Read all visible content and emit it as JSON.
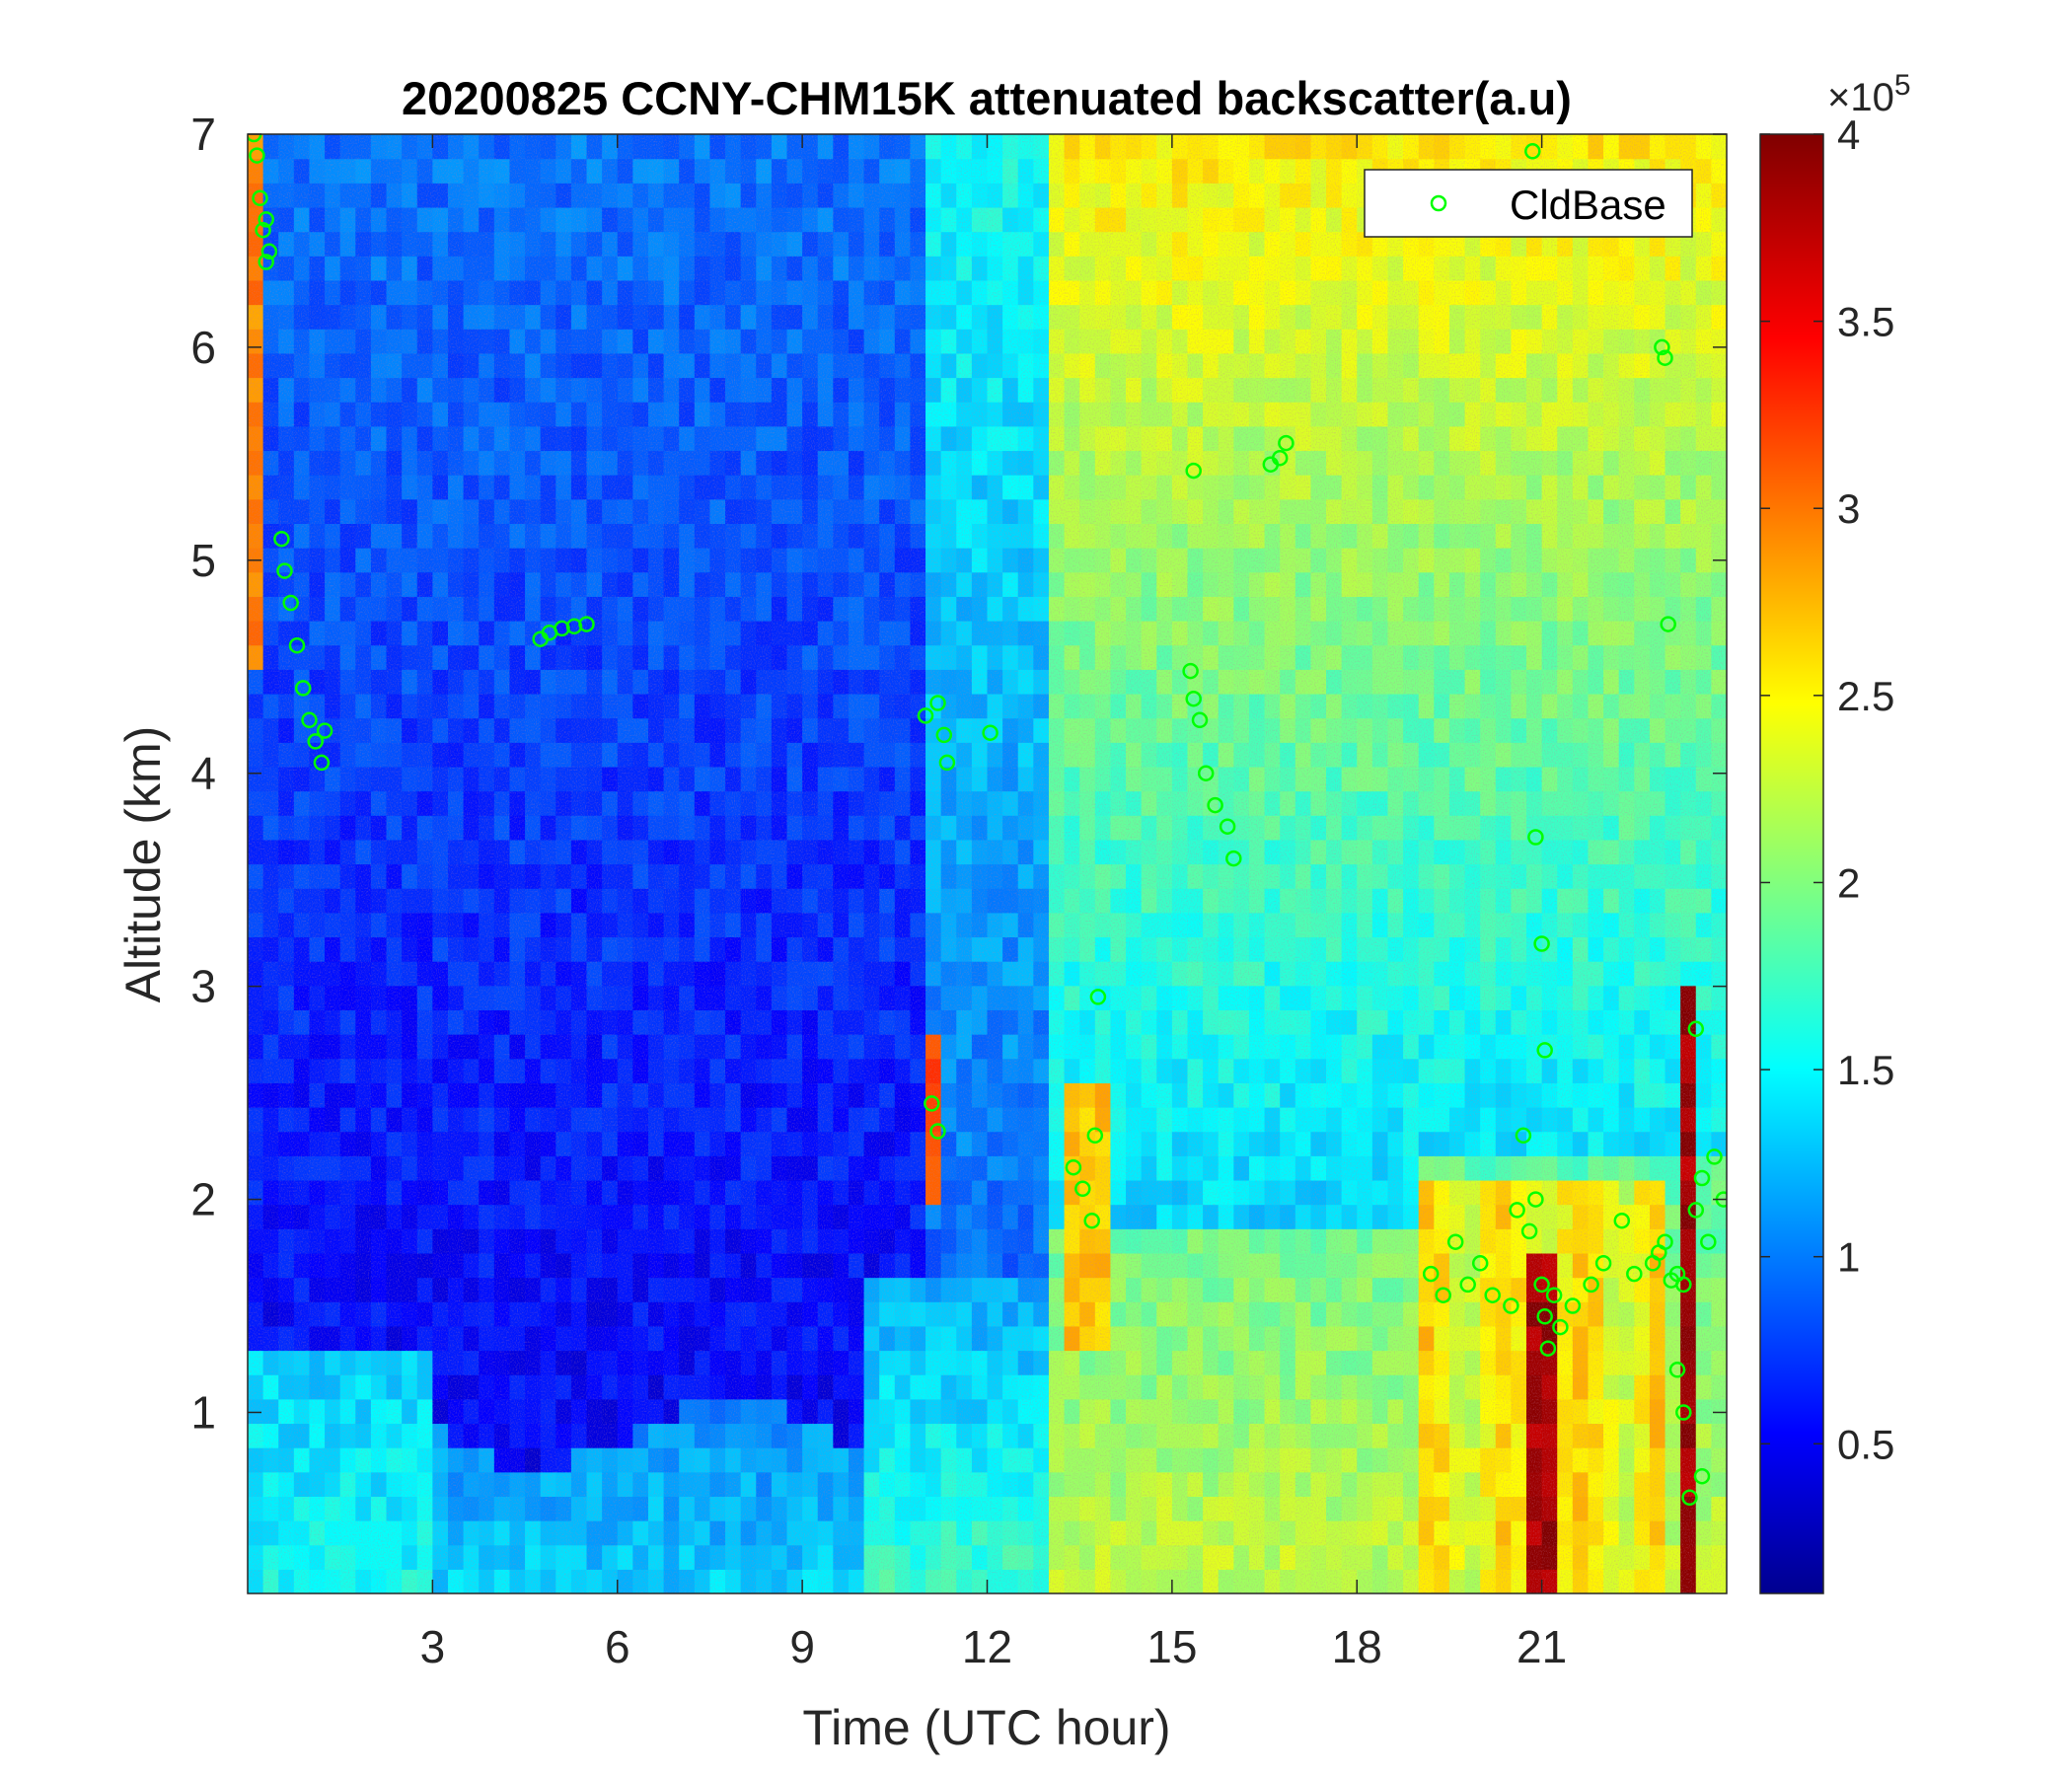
{
  "chart_data": {
    "type": "heatmap",
    "title": "20200825 CCNY-CHM15K attenuated backscatter(a.u)",
    "xlabel": "Time (UTC hour)",
    "ylabel": "Altitude (km)",
    "xlim": [
      0,
      24
    ],
    "ylim": [
      0.15,
      7
    ],
    "xticks": [
      3,
      6,
      9,
      12,
      15,
      18,
      21
    ],
    "xtick_labels": [
      "3",
      "6",
      "9",
      "12",
      "15",
      "18",
      "21"
    ],
    "yticks": [
      1,
      2,
      3,
      4,
      5,
      6,
      7
    ],
    "ytick_labels": [
      "1",
      "2",
      "3",
      "4",
      "5",
      "6",
      "7"
    ],
    "colormap": "jet",
    "colorbar": {
      "range": [
        0.1,
        4
      ],
      "ticks": [
        0.5,
        1,
        1.5,
        2,
        2.5,
        3,
        3.5,
        4
      ],
      "tick_labels": [
        "0.5",
        "1",
        "1.5",
        "2",
        "2.5",
        "3",
        "3.5",
        "4"
      ],
      "exponent_base": "×10",
      "exponent_power": "5"
    },
    "legend": {
      "entries": [
        "CldBase"
      ],
      "placement": "top-right",
      "marker_color": "#00ff00"
    },
    "series": [
      {
        "name": "CldBase",
        "x": [
          0.1,
          0.15,
          0.2,
          0.25,
          0.3,
          0.3,
          0.35,
          0.55,
          0.6,
          0.7,
          0.8,
          0.9,
          1.0,
          1.1,
          1.2,
          1.25,
          4.75,
          4.9,
          5.1,
          5.3,
          5.5,
          11.0,
          11.2,
          11.3,
          11.35,
          12.05,
          11.1,
          11.2,
          13.4,
          13.55,
          13.7,
          13.75,
          13.8,
          15.3,
          15.35,
          15.45,
          15.55,
          15.7,
          15.9,
          16.0,
          15.35,
          16.6,
          16.75,
          16.85,
          19.2,
          19.4,
          19.6,
          19.8,
          20.0,
          20.2,
          20.5,
          20.6,
          20.7,
          20.8,
          20.9,
          21.0,
          21.05,
          21.1,
          21.2,
          21.3,
          21.5,
          21.8,
          22.0,
          22.3,
          22.5,
          22.8,
          22.9,
          23.0,
          23.1,
          23.2,
          23.3,
          23.5,
          23.6,
          23.7,
          23.8,
          23.95,
          20.9,
          21.0,
          21.05,
          22.95,
          23.0,
          23.05,
          23.5,
          23.6,
          23.2,
          23.3,
          23.4,
          20.85
        ],
        "y": [
          7.0,
          6.9,
          6.7,
          6.55,
          6.4,
          6.6,
          6.45,
          5.1,
          4.95,
          4.8,
          4.6,
          4.4,
          4.25,
          4.15,
          4.05,
          4.2,
          4.63,
          4.66,
          4.68,
          4.69,
          4.7,
          4.27,
          4.33,
          4.18,
          4.05,
          4.19,
          2.45,
          2.32,
          2.15,
          2.05,
          1.9,
          2.3,
          2.95,
          4.48,
          4.35,
          4.25,
          4.0,
          3.85,
          3.75,
          3.6,
          5.42,
          5.45,
          5.48,
          5.55,
          1.65,
          1.55,
          1.8,
          1.6,
          1.7,
          1.55,
          1.5,
          1.95,
          2.3,
          1.85,
          2.0,
          1.6,
          1.45,
          1.3,
          1.55,
          1.4,
          1.5,
          1.6,
          1.7,
          1.9,
          1.65,
          1.7,
          1.75,
          1.8,
          1.62,
          1.65,
          1.6,
          1.95,
          2.1,
          1.8,
          2.2,
          2.0,
          3.7,
          3.2,
          2.7,
          6.0,
          5.95,
          4.7,
          2.8,
          0.7,
          1.2,
          1.0,
          0.6,
          6.92
        ]
      }
    ]
  }
}
